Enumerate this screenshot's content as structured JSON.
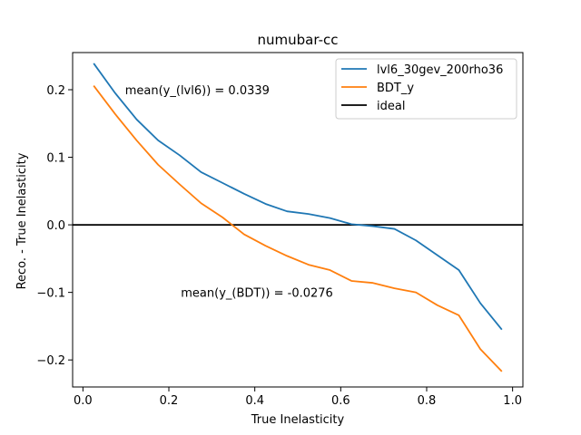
{
  "chart_data": {
    "type": "line",
    "title": "numubar-cc",
    "xlabel": "True Inelasticity",
    "ylabel": "Reco. - True Inelasticity",
    "xlim": [
      -0.024,
      1.024
    ],
    "ylim": [
      -0.24,
      0.255
    ],
    "xticks": [
      0.0,
      0.2,
      0.4,
      0.6,
      0.8,
      1.0
    ],
    "xtick_labels": [
      "0.0",
      "0.2",
      "0.4",
      "0.6",
      "0.8",
      "1.0"
    ],
    "yticks": [
      -0.2,
      -0.1,
      0.0,
      0.1,
      0.2
    ],
    "ytick_labels": [
      "−0.2",
      "−0.1",
      "0.0",
      "0.1",
      "0.2"
    ],
    "grid": false,
    "legend_position": "top-right",
    "x": [
      0.025,
      0.075,
      0.125,
      0.175,
      0.225,
      0.275,
      0.325,
      0.375,
      0.425,
      0.475,
      0.525,
      0.575,
      0.625,
      0.675,
      0.725,
      0.775,
      0.825,
      0.875,
      0.925,
      0.975
    ],
    "series": [
      {
        "name": "lvl6_30gev_200rho36",
        "color": "#1f77b4",
        "values": [
          0.239,
          0.195,
          0.156,
          0.125,
          0.103,
          0.078,
          0.062,
          0.046,
          0.031,
          0.02,
          0.016,
          0.01,
          0.001,
          -0.002,
          -0.006,
          -0.023,
          -0.045,
          -0.067,
          -0.116,
          -0.155
        ]
      },
      {
        "name": "BDT_y",
        "color": "#ff7f0e",
        "values": [
          0.206,
          0.164,
          0.125,
          0.089,
          0.06,
          0.032,
          0.011,
          -0.014,
          -0.031,
          -0.046,
          -0.059,
          -0.067,
          -0.083,
          -0.086,
          -0.094,
          -0.1,
          -0.119,
          -0.134,
          -0.184,
          -0.217
        ]
      }
    ],
    "reference_line": {
      "name": "ideal",
      "y": 0.0,
      "color": "#000000"
    },
    "annotations": [
      {
        "text": "mean(y_(lvl6)) = 0.0339",
        "x": 0.098,
        "y": 0.2
      },
      {
        "text": "mean(y_(BDT)) = -0.0276",
        "x": 0.228,
        "y": -0.1
      }
    ]
  }
}
